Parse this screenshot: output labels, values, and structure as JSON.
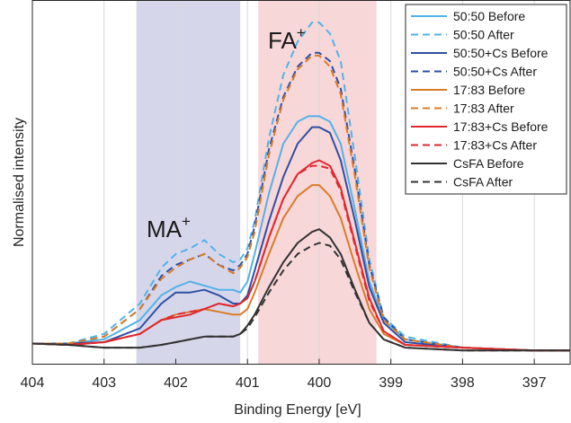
{
  "chart_data": {
    "type": "line",
    "xlabel": "Binding Energy [eV]",
    "ylabel": "Normalised intensity",
    "xlim": [
      404,
      396.5
    ],
    "x_reversed": true,
    "ylim": [
      0,
      1.32
    ],
    "x_ticks": [
      404,
      403,
      402,
      401,
      400,
      399,
      398,
      397
    ],
    "x_tick_labels": [
      "404",
      "403",
      "402",
      "401",
      "400",
      "399",
      "398",
      "397"
    ],
    "grid": "vertical",
    "legend_position": "top-right",
    "regions": [
      {
        "from": 402.55,
        "to": 401.1,
        "color": "#d6d6ea",
        "label": "MA",
        "label_sup": "+"
      },
      {
        "from": 400.85,
        "to": 399.2,
        "color": "#f8d7d9",
        "label": "FA",
        "label_sup": "+"
      }
    ],
    "series": [
      {
        "name": "50:50 Before",
        "color": "#52b2e8",
        "dash": false,
        "points": [
          [
            404,
            0.075
          ],
          [
            403.5,
            0.075
          ],
          [
            403,
            0.09
          ],
          [
            402.5,
            0.16
          ],
          [
            402.2,
            0.25
          ],
          [
            402,
            0.28
          ],
          [
            401.8,
            0.3
          ],
          [
            401.6,
            0.285
          ],
          [
            401.4,
            0.27
          ],
          [
            401.2,
            0.27
          ],
          [
            401.1,
            0.26
          ],
          [
            401,
            0.3
          ],
          [
            400.9,
            0.4
          ],
          [
            400.7,
            0.62
          ],
          [
            400.5,
            0.8
          ],
          [
            400.3,
            0.88
          ],
          [
            400.15,
            0.9
          ],
          [
            400,
            0.9
          ],
          [
            399.85,
            0.88
          ],
          [
            399.7,
            0.8
          ],
          [
            399.5,
            0.56
          ],
          [
            399.3,
            0.3
          ],
          [
            399.1,
            0.16
          ],
          [
            398.8,
            0.09
          ],
          [
            398,
            0.06
          ],
          [
            397,
            0.05
          ],
          [
            396.5,
            0.05
          ]
        ]
      },
      {
        "name": "50:50 After",
        "color": "#52b2e8",
        "dash": true,
        "points": [
          [
            404,
            0.075
          ],
          [
            403.5,
            0.075
          ],
          [
            403,
            0.11
          ],
          [
            402.5,
            0.22
          ],
          [
            402.2,
            0.35
          ],
          [
            402,
            0.4
          ],
          [
            401.8,
            0.42
          ],
          [
            401.6,
            0.45
          ],
          [
            401.4,
            0.4
          ],
          [
            401.2,
            0.37
          ],
          [
            401.1,
            0.38
          ],
          [
            401,
            0.42
          ],
          [
            400.9,
            0.52
          ],
          [
            400.7,
            0.82
          ],
          [
            400.5,
            1.05
          ],
          [
            400.3,
            1.17
          ],
          [
            400.1,
            1.24
          ],
          [
            400,
            1.24
          ],
          [
            399.85,
            1.2
          ],
          [
            399.7,
            1.1
          ],
          [
            399.5,
            0.75
          ],
          [
            399.3,
            0.38
          ],
          [
            399.1,
            0.17
          ],
          [
            398.8,
            0.1
          ],
          [
            398,
            0.06
          ],
          [
            397,
            0.05
          ],
          [
            396.5,
            0.05
          ]
        ]
      },
      {
        "name": "50:50+Cs Before",
        "color": "#2e4fa3",
        "dash": false,
        "points": [
          [
            404,
            0.075
          ],
          [
            403.5,
            0.075
          ],
          [
            403,
            0.08
          ],
          [
            402.5,
            0.13
          ],
          [
            402.2,
            0.22
          ],
          [
            402,
            0.26
          ],
          [
            401.8,
            0.26
          ],
          [
            401.6,
            0.27
          ],
          [
            401.4,
            0.25
          ],
          [
            401.2,
            0.22
          ],
          [
            401.1,
            0.22
          ],
          [
            401,
            0.25
          ],
          [
            400.9,
            0.34
          ],
          [
            400.7,
            0.52
          ],
          [
            400.5,
            0.68
          ],
          [
            400.3,
            0.8
          ],
          [
            400.1,
            0.86
          ],
          [
            400,
            0.86
          ],
          [
            399.85,
            0.84
          ],
          [
            399.7,
            0.74
          ],
          [
            399.5,
            0.52
          ],
          [
            399.3,
            0.28
          ],
          [
            399.1,
            0.15
          ],
          [
            398.8,
            0.08
          ],
          [
            398,
            0.06
          ],
          [
            397,
            0.05
          ],
          [
            396.5,
            0.05
          ]
        ]
      },
      {
        "name": "50:50+Cs After",
        "color": "#2e4fa3",
        "dash": true,
        "points": [
          [
            404,
            0.075
          ],
          [
            403.5,
            0.075
          ],
          [
            403,
            0.1
          ],
          [
            402.5,
            0.2
          ],
          [
            402.2,
            0.32
          ],
          [
            402,
            0.36
          ],
          [
            401.8,
            0.38
          ],
          [
            401.6,
            0.4
          ],
          [
            401.4,
            0.36
          ],
          [
            401.2,
            0.34
          ],
          [
            401.1,
            0.36
          ],
          [
            401,
            0.4
          ],
          [
            400.9,
            0.5
          ],
          [
            400.7,
            0.78
          ],
          [
            400.5,
            0.97
          ],
          [
            400.3,
            1.08
          ],
          [
            400.1,
            1.13
          ],
          [
            400,
            1.13
          ],
          [
            399.85,
            1.1
          ],
          [
            399.7,
            1.0
          ],
          [
            399.5,
            0.7
          ],
          [
            399.3,
            0.36
          ],
          [
            399.1,
            0.17
          ],
          [
            398.8,
            0.09
          ],
          [
            398,
            0.06
          ],
          [
            397,
            0.05
          ],
          [
            396.5,
            0.05
          ]
        ]
      },
      {
        "name": "17:83 Before",
        "color": "#d97c27",
        "dash": false,
        "points": [
          [
            404,
            0.075
          ],
          [
            403.5,
            0.07
          ],
          [
            403,
            0.08
          ],
          [
            402.5,
            0.11
          ],
          [
            402.2,
            0.16
          ],
          [
            402,
            0.18
          ],
          [
            401.8,
            0.19
          ],
          [
            401.6,
            0.2
          ],
          [
            401.4,
            0.19
          ],
          [
            401.2,
            0.18
          ],
          [
            401.1,
            0.18
          ],
          [
            401,
            0.2
          ],
          [
            400.9,
            0.26
          ],
          [
            400.7,
            0.4
          ],
          [
            400.5,
            0.53
          ],
          [
            400.3,
            0.61
          ],
          [
            400.1,
            0.65
          ],
          [
            400,
            0.65
          ],
          [
            399.85,
            0.61
          ],
          [
            399.7,
            0.53
          ],
          [
            399.5,
            0.36
          ],
          [
            399.3,
            0.2
          ],
          [
            399.1,
            0.11
          ],
          [
            398.8,
            0.07
          ],
          [
            398,
            0.06
          ],
          [
            397,
            0.05
          ],
          [
            396.5,
            0.05
          ]
        ]
      },
      {
        "name": "17:83 After",
        "color": "#d97c27",
        "dash": true,
        "points": [
          [
            404,
            0.075
          ],
          [
            403.5,
            0.075
          ],
          [
            403,
            0.1
          ],
          [
            402.5,
            0.2
          ],
          [
            402.2,
            0.31
          ],
          [
            402,
            0.35
          ],
          [
            401.8,
            0.38
          ],
          [
            401.6,
            0.4
          ],
          [
            401.4,
            0.36
          ],
          [
            401.2,
            0.33
          ],
          [
            401.1,
            0.35
          ],
          [
            401,
            0.39
          ],
          [
            400.9,
            0.48
          ],
          [
            400.7,
            0.76
          ],
          [
            400.5,
            0.96
          ],
          [
            400.3,
            1.07
          ],
          [
            400.1,
            1.12
          ],
          [
            400,
            1.12
          ],
          [
            399.85,
            1.08
          ],
          [
            399.7,
            0.98
          ],
          [
            399.5,
            0.68
          ],
          [
            399.3,
            0.35
          ],
          [
            399.1,
            0.16
          ],
          [
            398.8,
            0.09
          ],
          [
            398,
            0.06
          ],
          [
            397,
            0.05
          ],
          [
            396.5,
            0.05
          ]
        ]
      },
      {
        "name": "17:83+Cs Before",
        "color": "#e0282e",
        "dash": false,
        "points": [
          [
            404,
            0.075
          ],
          [
            403.5,
            0.07
          ],
          [
            403,
            0.08
          ],
          [
            402.5,
            0.11
          ],
          [
            402.2,
            0.16
          ],
          [
            402,
            0.17
          ],
          [
            401.8,
            0.18
          ],
          [
            401.6,
            0.2
          ],
          [
            401.4,
            0.22
          ],
          [
            401.2,
            0.21
          ],
          [
            401.1,
            0.22
          ],
          [
            401,
            0.24
          ],
          [
            400.9,
            0.3
          ],
          [
            400.7,
            0.46
          ],
          [
            400.5,
            0.6
          ],
          [
            400.3,
            0.69
          ],
          [
            400.1,
            0.73
          ],
          [
            400,
            0.74
          ],
          [
            399.85,
            0.72
          ],
          [
            399.7,
            0.64
          ],
          [
            399.5,
            0.44
          ],
          [
            399.3,
            0.24
          ],
          [
            399.1,
            0.12
          ],
          [
            398.8,
            0.07
          ],
          [
            398,
            0.06
          ],
          [
            397,
            0.05
          ],
          [
            396.5,
            0.05
          ]
        ]
      },
      {
        "name": "17:83+Cs After",
        "color": "#e0282e",
        "dash": true,
        "points": [
          [
            404,
            0.075
          ],
          [
            403.5,
            0.07
          ],
          [
            403,
            0.08
          ],
          [
            402.5,
            0.11
          ],
          [
            402.2,
            0.16
          ],
          [
            402,
            0.18
          ],
          [
            401.8,
            0.19
          ],
          [
            401.6,
            0.2
          ],
          [
            401.4,
            0.22
          ],
          [
            401.2,
            0.21
          ],
          [
            401.1,
            0.22
          ],
          [
            401,
            0.24
          ],
          [
            400.9,
            0.3
          ],
          [
            400.7,
            0.46
          ],
          [
            400.5,
            0.6
          ],
          [
            400.3,
            0.69
          ],
          [
            400.1,
            0.72
          ],
          [
            400,
            0.72
          ],
          [
            399.85,
            0.71
          ],
          [
            399.7,
            0.63
          ],
          [
            399.5,
            0.43
          ],
          [
            399.3,
            0.23
          ],
          [
            399.1,
            0.12
          ],
          [
            398.8,
            0.07
          ],
          [
            398,
            0.06
          ],
          [
            397,
            0.05
          ],
          [
            396.5,
            0.05
          ]
        ]
      },
      {
        "name": "CsFA Before",
        "color": "#333333",
        "dash": false,
        "points": [
          [
            404,
            0.075
          ],
          [
            403.5,
            0.07
          ],
          [
            403,
            0.06
          ],
          [
            402.5,
            0.06
          ],
          [
            402.2,
            0.07
          ],
          [
            402,
            0.08
          ],
          [
            401.8,
            0.09
          ],
          [
            401.6,
            0.1
          ],
          [
            401.4,
            0.1
          ],
          [
            401.2,
            0.1
          ],
          [
            401.1,
            0.11
          ],
          [
            401,
            0.14
          ],
          [
            400.9,
            0.18
          ],
          [
            400.7,
            0.28
          ],
          [
            400.5,
            0.37
          ],
          [
            400.3,
            0.44
          ],
          [
            400.1,
            0.48
          ],
          [
            400,
            0.49
          ],
          [
            399.85,
            0.46
          ],
          [
            399.7,
            0.4
          ],
          [
            399.5,
            0.27
          ],
          [
            399.3,
            0.15
          ],
          [
            399.1,
            0.09
          ],
          [
            398.8,
            0.06
          ],
          [
            398,
            0.05
          ],
          [
            397,
            0.05
          ],
          [
            396.5,
            0.05
          ]
        ]
      },
      {
        "name": "CsFA After",
        "color": "#333333",
        "dash": true,
        "points": [
          [
            404,
            0.075
          ],
          [
            403.5,
            0.07
          ],
          [
            403,
            0.06
          ],
          [
            402.5,
            0.06
          ],
          [
            402.2,
            0.07
          ],
          [
            402,
            0.08
          ],
          [
            401.8,
            0.09
          ],
          [
            401.6,
            0.1
          ],
          [
            401.4,
            0.1
          ],
          [
            401.2,
            0.1
          ],
          [
            401.1,
            0.11
          ],
          [
            401,
            0.13
          ],
          [
            400.9,
            0.17
          ],
          [
            400.7,
            0.26
          ],
          [
            400.5,
            0.34
          ],
          [
            400.3,
            0.4
          ],
          [
            400.1,
            0.43
          ],
          [
            400,
            0.44
          ],
          [
            399.85,
            0.43
          ],
          [
            399.7,
            0.38
          ],
          [
            399.5,
            0.26
          ],
          [
            399.3,
            0.15
          ],
          [
            399.1,
            0.09
          ],
          [
            398.8,
            0.06
          ],
          [
            398,
            0.05
          ],
          [
            397,
            0.05
          ],
          [
            396.5,
            0.05
          ]
        ]
      }
    ]
  }
}
